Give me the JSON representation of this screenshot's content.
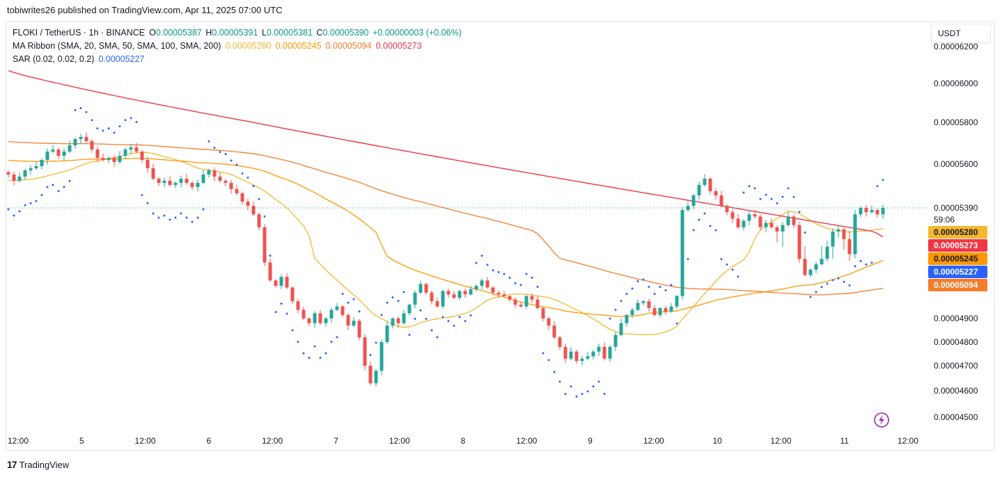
{
  "header": {
    "publisher": "tobiwrites26 published on TradingView.com, Apr 11, 2025 07:00 UTC"
  },
  "legend": {
    "symbol": "FLOKI / TetherUS · 1h · BINANCE",
    "o_label": "O",
    "o_value": "0.00005387",
    "h_label": "H",
    "h_value": "0.00005391",
    "l_label": "L",
    "l_value": "0.00005381",
    "c_label": "C",
    "c_value": "0.00005390",
    "change": "+0.00000003 (+0.06%)",
    "ma_label": "MA Ribbon (SMA, 20, SMA, 50, SMA, 100, SMA, 200)",
    "ma_values": [
      "0.00005280",
      "0.00005245",
      "0.00005094",
      "0.00005273"
    ],
    "sar_label": "SAR (0.02, 0.02, 0.2)",
    "sar_value": "0.00005227"
  },
  "currency_button": "USDT",
  "footer": {
    "brand": "TradingView"
  },
  "colors": {
    "up": "#26a69a",
    "down": "#ef5350",
    "sma20": "#f5b82e",
    "sma50": "#ff9800",
    "sma100": "#f57c2c",
    "sma200": "#f23645",
    "sar": "#2962ff",
    "price_line": "#26a69a"
  },
  "chart_data": {
    "type": "line",
    "title": "FLOKI / TetherUS · 1h · BINANCE",
    "xlabel": "",
    "ylabel": "",
    "ylim": [
      4.48e-05,
      6.25e-05
    ],
    "y_ticks": [
      "0.00006200",
      "0.00006000",
      "0.00005800",
      "0.00005600",
      "0.00004900",
      "0.00004800",
      "0.00004700",
      "0.00004600",
      "0.00004500"
    ],
    "y_tick_values": [
      6.2e-05,
      6e-05,
      5.8e-05,
      5.6e-05,
      4.9e-05,
      4.8e-05,
      4.7e-05,
      4.6e-05,
      4.5e-05
    ],
    "x_ticks": [
      "12:00",
      "5",
      "12:00",
      "6",
      "12:00",
      "7",
      "12:00",
      "8",
      "12:00",
      "9",
      "12:00",
      "10",
      "12:00",
      "11",
      "12:00"
    ],
    "x_tick_hours": [
      0,
      12,
      24,
      36,
      48,
      60,
      72,
      84,
      96,
      108,
      120,
      132,
      144,
      156,
      168
    ],
    "last_price": {
      "label": "0.00005390",
      "value": 5.39e-05,
      "countdown": "59:06"
    },
    "price_tags": [
      {
        "name": "SMA 20",
        "label": "0.00005280",
        "value": 5.28e-05,
        "color": "#f5b82e",
        "text_color": "#131722"
      },
      {
        "name": "SMA 200",
        "label": "0.00005273",
        "value": 5.273e-05,
        "color": "#f23645",
        "text_color": "#ffffff"
      },
      {
        "name": "SMA 50",
        "label": "0.00005245",
        "value": 5.245e-05,
        "color": "#ff9800",
        "text_color": "#131722"
      },
      {
        "name": "SAR",
        "label": "0.00005227",
        "value": 5.227e-05,
        "color": "#2962ff",
        "text_color": "#ffffff"
      },
      {
        "name": "SMA 100",
        "label": "0.00005094",
        "value": 5.094e-05,
        "color": "#f57c2c",
        "text_color": "#ffffff"
      }
    ],
    "candles_close": [
      5.55,
      5.52,
      5.54,
      5.57,
      5.58,
      5.59,
      5.62,
      5.66,
      5.67,
      5.64,
      5.66,
      5.69,
      5.72,
      5.73,
      5.71,
      5.67,
      5.63,
      5.62,
      5.63,
      5.61,
      5.64,
      5.67,
      5.68,
      5.66,
      5.62,
      5.58,
      5.53,
      5.51,
      5.52,
      5.5,
      5.51,
      5.53,
      5.51,
      5.49,
      5.51,
      5.55,
      5.57,
      5.54,
      5.52,
      5.51,
      5.48,
      5.46,
      5.42,
      5.4,
      5.36,
      5.3,
      5.22,
      5.12,
      5.09,
      5.14,
      5.08,
      5.0,
      4.95,
      4.9,
      4.88,
      4.93,
      4.88,
      4.9,
      4.95,
      4.97,
      4.92,
      4.87,
      4.89,
      4.82,
      4.7,
      4.63,
      4.68,
      4.8,
      4.87,
      4.9,
      4.88,
      4.93,
      4.98,
      5.05,
      5.1,
      5.05,
      5.0,
      4.97,
      5.06,
      5.04,
      5.02,
      5.06,
      5.04,
      5.07,
      5.09,
      5.12,
      5.08,
      5.05,
      5.04,
      5.03,
      5.01,
      4.98,
      4.97,
      5.03,
      5.01,
      4.96,
      4.9,
      4.87,
      4.82,
      4.78,
      4.73,
      4.76,
      4.72,
      4.73,
      4.74,
      4.76,
      4.78,
      4.73,
      4.78,
      4.83,
      4.88,
      4.92,
      4.95,
      4.99,
      5.0,
      4.96,
      4.92,
      4.96,
      4.94,
      4.97,
      5.03,
      5.38,
      5.4,
      5.45,
      5.5,
      5.53,
      5.47,
      5.45,
      5.4,
      5.37,
      5.34,
      5.3,
      5.33,
      5.36,
      5.35,
      5.3,
      5.32,
      5.3,
      5.28,
      5.31,
      5.35,
      5.31,
      5.24,
      5.15,
      5.18,
      5.21,
      5.24,
      5.26,
      5.28,
      5.29,
      5.27,
      5.25,
      5.36,
      5.39,
      5.37,
      5.38,
      5.36,
      5.39
    ]
  }
}
